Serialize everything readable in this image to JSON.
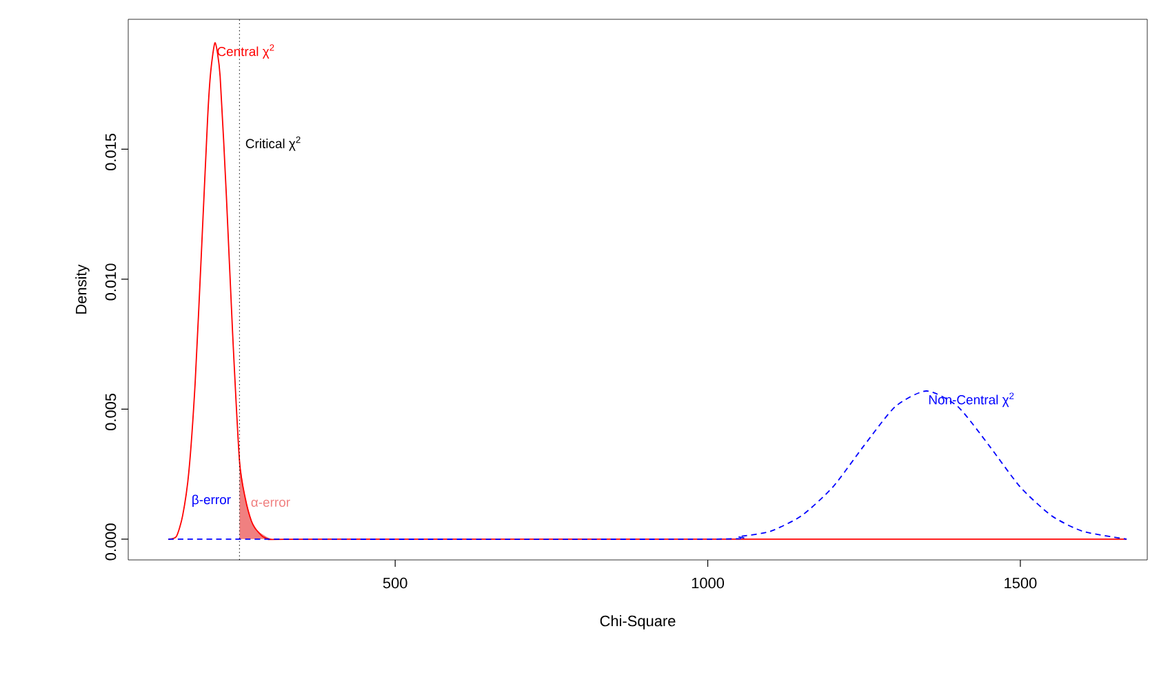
{
  "chart_data": {
    "type": "line",
    "xlabel": "Chi-Square",
    "ylabel": "Density",
    "xlim": [
      73,
      1703
    ],
    "ylim": [
      -0.0008,
      0.02
    ],
    "xticks": [
      500,
      1000,
      1500
    ],
    "yticks": [
      {
        "value": 0,
        "label": "0.000"
      },
      {
        "value": 0.005,
        "label": "0.005"
      },
      {
        "value": 0.01,
        "label": "0.010"
      },
      {
        "value": 0.015,
        "label": "0.015"
      }
    ],
    "grid": false,
    "marker": "none",
    "series": [
      {
        "name": "Central χ$^{2}$",
        "color": "#ff0000",
        "line_style": "solid",
        "x": [
          137,
          150,
          160,
          170,
          180,
          190,
          200,
          205,
          212,
          220,
          230,
          240,
          251,
          260,
          270,
          280,
          300,
          400,
          1670
        ],
        "values": [
          0,
          0.0001,
          0.0009,
          0.0026,
          0.006,
          0.011,
          0.0162,
          0.018,
          0.0191,
          0.0178,
          0.0132,
          0.0079,
          0.003,
          0.0016,
          0.0007,
          0.0003,
          0,
          0,
          0
        ]
      },
      {
        "name": "Non-Central χ$^{2}$",
        "color": "#0000ff",
        "line_style": "dashed",
        "x": [
          137,
          1000,
          1050,
          1100,
          1150,
          1200,
          1250,
          1300,
          1350,
          1400,
          1450,
          1500,
          1550,
          1600,
          1670
        ],
        "values": [
          0,
          0,
          0.0001,
          0.0003,
          0.0009,
          0.002,
          0.0036,
          0.0051,
          0.0057,
          0.0051,
          0.0036,
          0.002,
          0.0009,
          0.0003,
          0
        ]
      },
      {
        "name": "α-error",
        "type": "area",
        "color": "#f08080",
        "x": [
          251,
          260,
          270,
          280,
          300
        ],
        "values": [
          0.003,
          0.0016,
          0.0007,
          0.0003,
          0
        ]
      }
    ],
    "annotations": [
      "β-error"
    ],
    "ref_lines": [
      {
        "axis": "x",
        "value": 251,
        "label": "Critical χ$^{2}$",
        "color": "#000000",
        "line_style": "dotted"
      }
    ]
  }
}
